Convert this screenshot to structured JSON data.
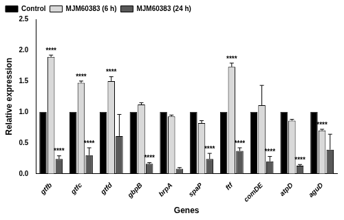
{
  "chart_data": {
    "type": "bar",
    "x_label": "Genes",
    "y_label": "Relative expression",
    "categories": [
      "gtfb",
      "gtfc",
      "gtfd",
      "gbpB",
      "brpA",
      "spaP",
      "ftf",
      "comDE",
      "atpD",
      "aguD"
    ],
    "series": [
      {
        "name": "Control",
        "color": "#000000",
        "values": [
          1,
          1,
          1,
          1,
          1,
          1,
          1,
          1,
          1,
          1
        ],
        "errors": [
          0,
          0,
          0,
          0,
          0,
          0,
          0,
          0,
          0,
          0
        ],
        "annotations": [
          null,
          null,
          null,
          null,
          null,
          null,
          null,
          null,
          null,
          null
        ]
      },
      {
        "name": "MJM60383 (6 h)",
        "color": "#d9d9d9",
        "values": [
          1.89,
          1.47,
          1.5,
          1.12,
          0.93,
          0.82,
          1.73,
          1.11,
          0.86,
          0.7
        ],
        "errors": [
          0.03,
          0.03,
          0.07,
          0.03,
          0.02,
          0.04,
          0.06,
          0.32,
          0.02,
          0.02
        ],
        "annotations": [
          "****",
          "****",
          "****",
          null,
          null,
          null,
          "****",
          null,
          null,
          "****"
        ]
      },
      {
        "name": "MJM60383 (24 h)",
        "color": "#595959",
        "values": [
          0.24,
          0.3,
          0.61,
          0.16,
          0.08,
          0.24,
          0.37,
          0.2,
          0.13,
          0.39
        ],
        "errors": [
          0.05,
          0.12,
          0.35,
          0.02,
          0.02,
          0.09,
          0.05,
          0.08,
          0.02,
          0.25
        ],
        "annotations": [
          "****",
          "****",
          null,
          "****",
          null,
          "****",
          "****",
          "****",
          "****",
          null
        ]
      }
    ],
    "ylim": [
      0,
      2.5
    ],
    "yticks": [
      {
        "value": 0,
        "label": "0.0"
      },
      {
        "value": 0.5,
        "label": "0.5"
      },
      {
        "value": 1,
        "label": "1.0"
      },
      {
        "value": 1.5,
        "label": "1.5"
      },
      {
        "value": 2,
        "label": "2.0"
      },
      {
        "value": 2.5,
        "label": "2.5"
      }
    ],
    "grid": false,
    "legend": "top-left"
  }
}
